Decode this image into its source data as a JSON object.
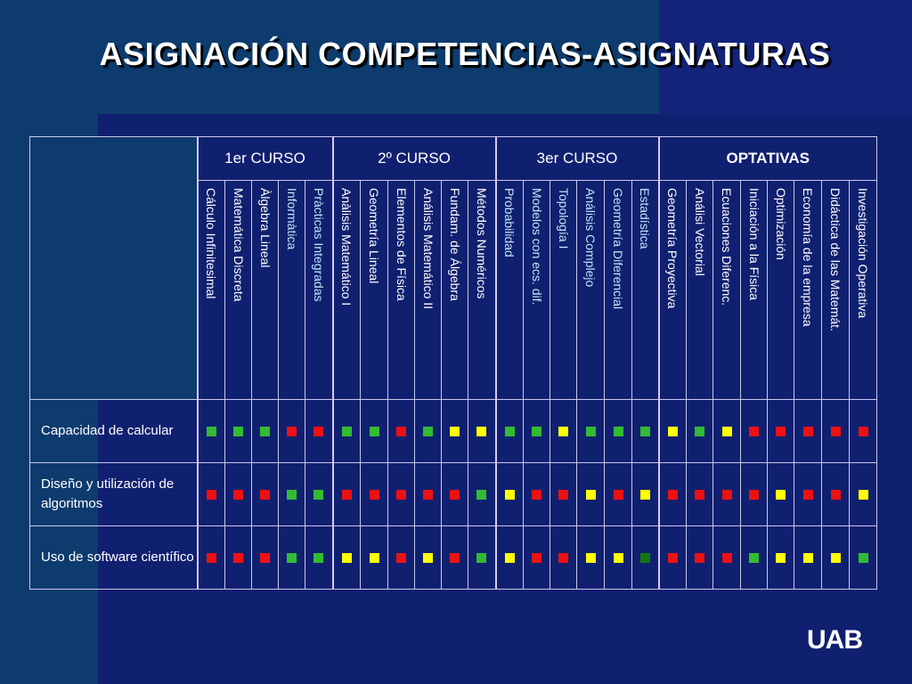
{
  "title": "ASIGNACIÓN COMPETENCIAS-ASIGNATURAS",
  "logo": "UAB",
  "colors": {
    "green": "#33bb33",
    "red": "#ee1111",
    "yellow": "#ffff00",
    "darkgreen": "#117711"
  },
  "groups": [
    {
      "label": "1er CURSO",
      "span": 5
    },
    {
      "label": "2º CURSO",
      "span": 6
    },
    {
      "label": "3er CURSO",
      "span": 6
    },
    {
      "label": "OPTATIVAS",
      "span": 8
    }
  ],
  "subjects": [
    "Cálculo Infinitesimal",
    "Matemática Discreta",
    "Àlgebra Lineal",
    "Informàtica",
    "Pràcticas Integradas",
    "Anàlisis Matemático I",
    "Geometría Lineal",
    "Elementos de Física",
    "Análisis Matemático II",
    "Fundam. de Álgebra",
    "Métodos Numéricos",
    "Probabilidad",
    "Modelos con ecs. dif.",
    "Topología I",
    "Análisis Complejo",
    "Geometría Diferencial",
    "Estadística",
    "Geometría Proyectiva",
    "Análisi Vectorial",
    "Ecuaciones Diferenc.",
    "Iniciación a la Física",
    "Optimización",
    "Economía de la empresa",
    "Didáctica de las Matemát.",
    "Investigación Operativa"
  ],
  "rows": [
    {
      "label": "Capacidad de calcular",
      "values": [
        "G",
        "G",
        "G",
        "R",
        "R",
        "G",
        "G",
        "R",
        "G",
        "Y",
        "Y",
        "G",
        "G",
        "Y",
        "G",
        "G",
        "G",
        "Y",
        "G",
        "Y",
        "R",
        "R",
        "R",
        "R",
        "R"
      ]
    },
    {
      "label": "Diseño y utilización de algoritmos",
      "values": [
        "R",
        "R",
        "R",
        "G",
        "G",
        "R",
        "R",
        "R",
        "R",
        "R",
        "G",
        "Y",
        "R",
        "R",
        "Y",
        "R",
        "Y",
        "R",
        "R",
        "R",
        "R",
        "Y",
        "R",
        "R",
        "Y"
      ]
    },
    {
      "label": "Uso de software científico",
      "values": [
        "R",
        "R",
        "R",
        "G",
        "G",
        "Y",
        "Y",
        "R",
        "Y",
        "R",
        "G",
        "Y",
        "R",
        "R",
        "Y",
        "Y",
        "D",
        "R",
        "R",
        "R",
        "G",
        "Y",
        "Y",
        "Y",
        "G"
      ]
    }
  ]
}
